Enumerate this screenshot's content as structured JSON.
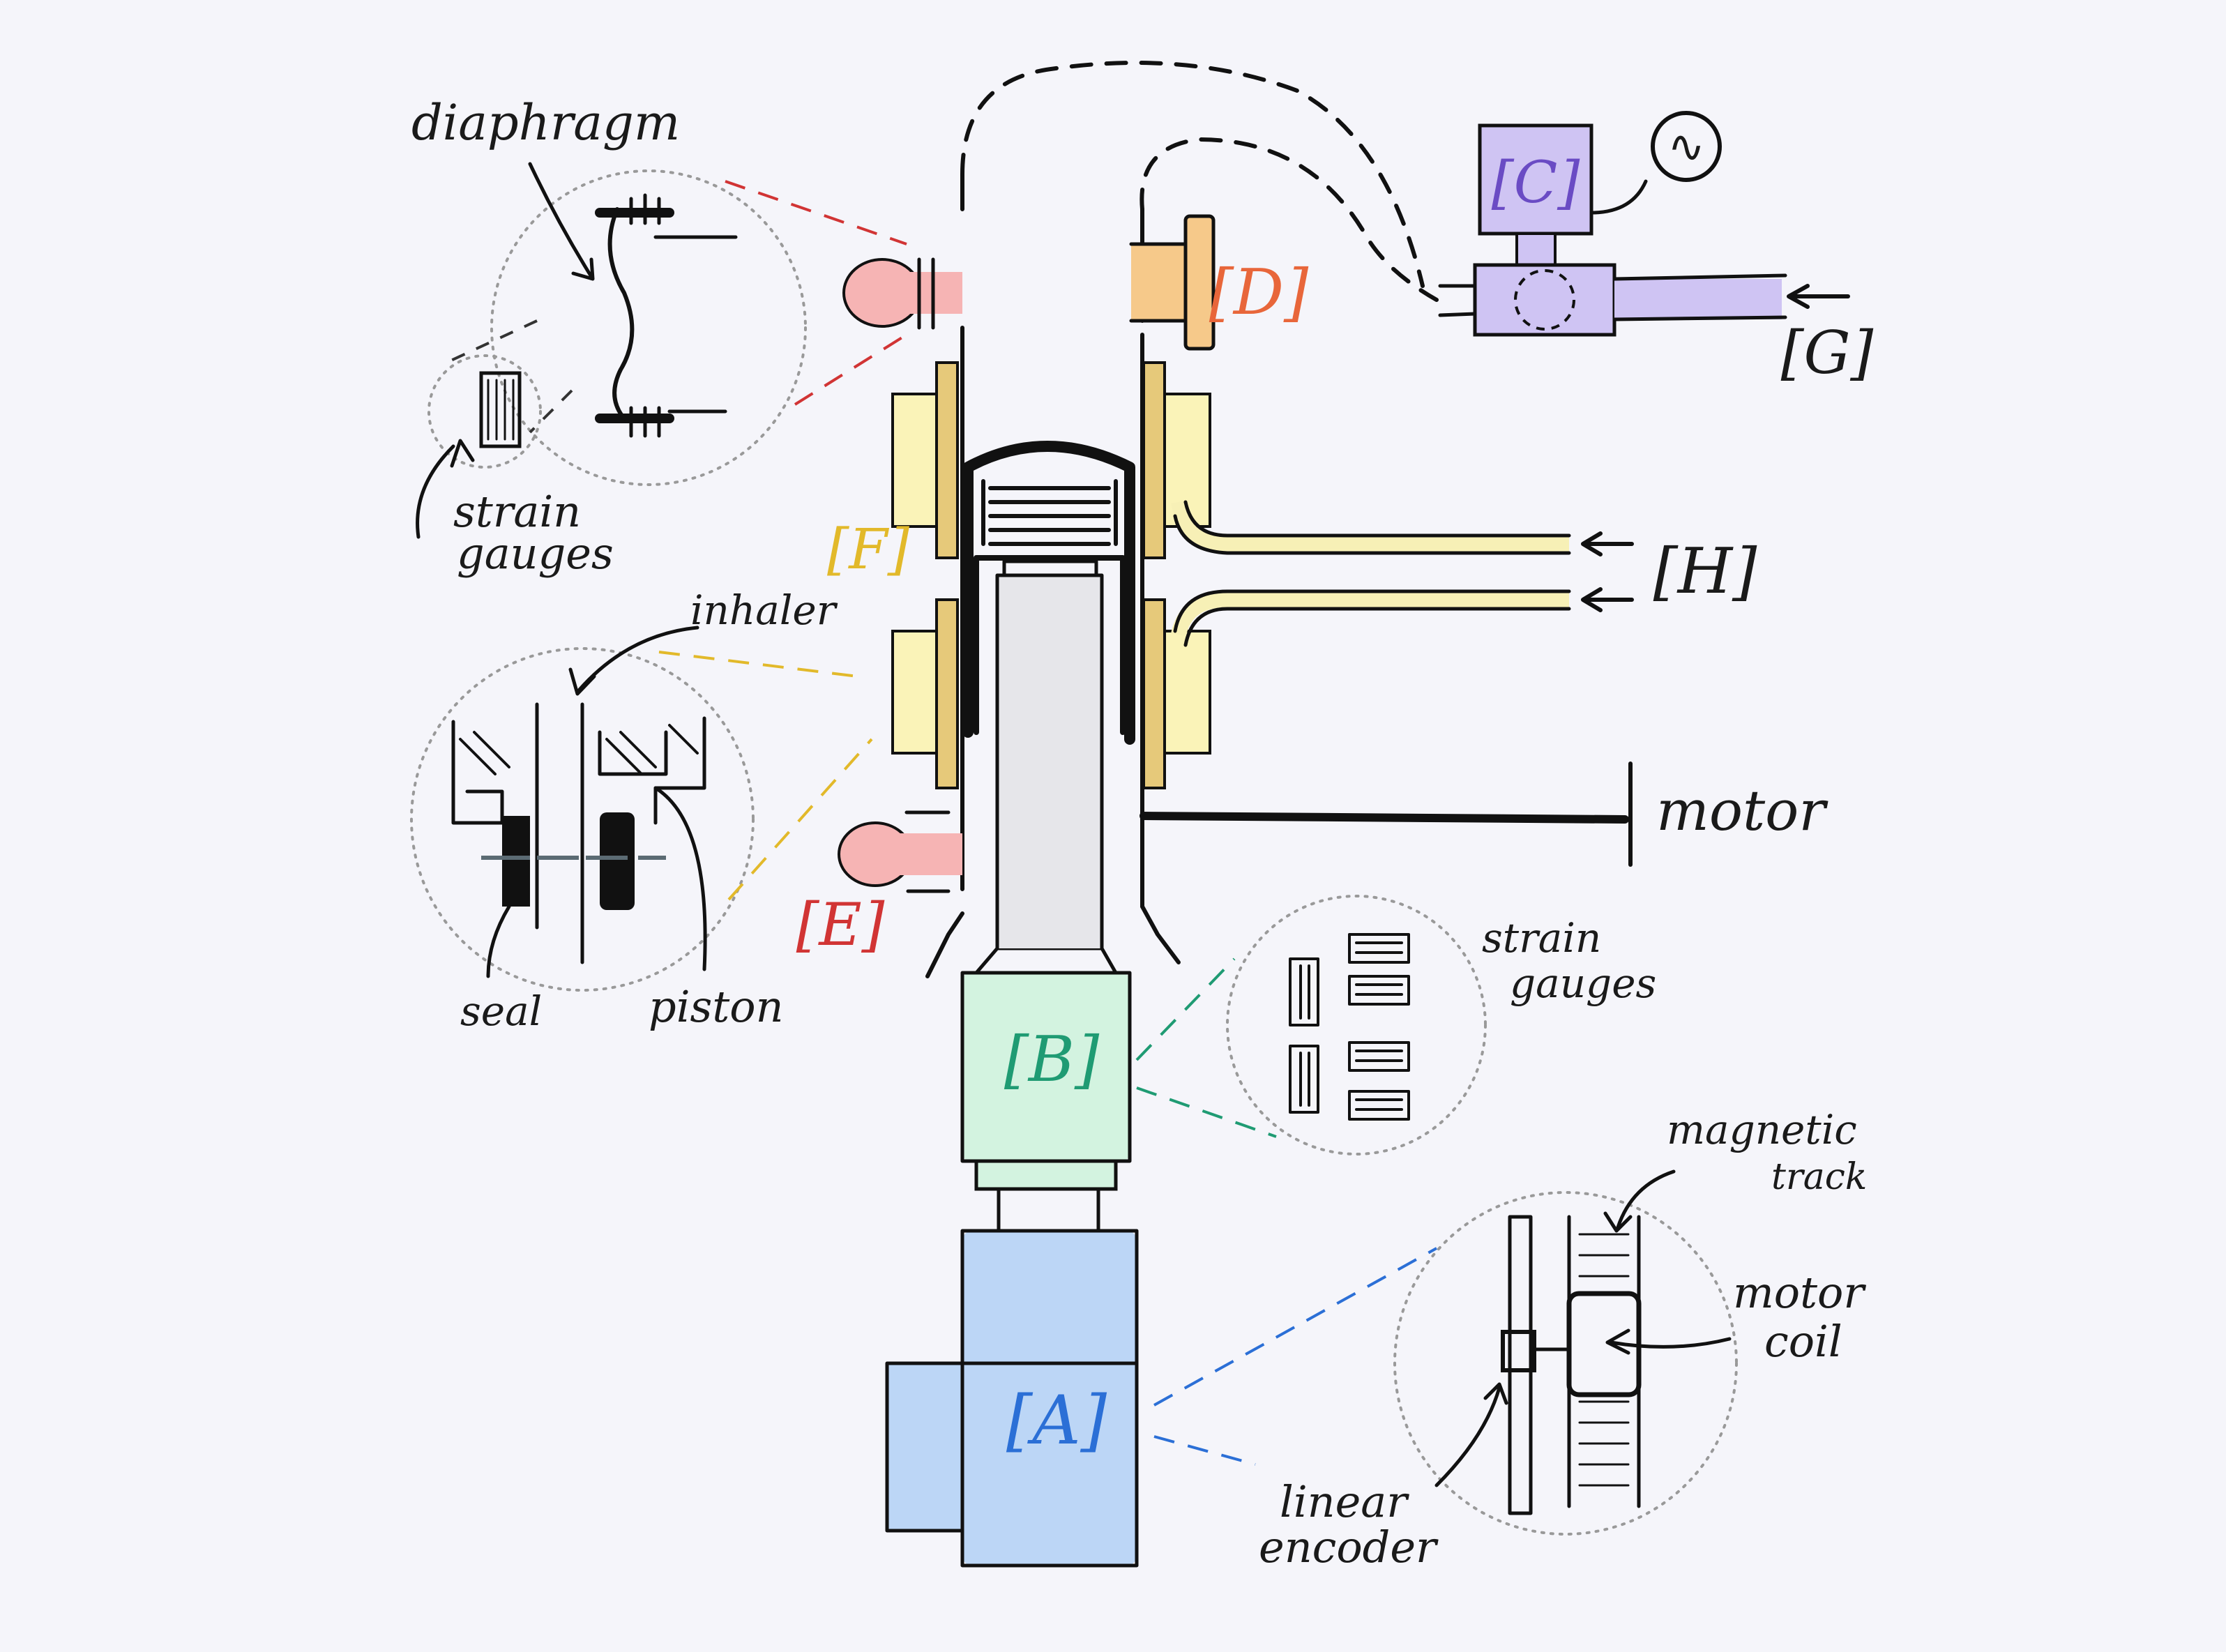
{
  "labels": {
    "A": "[A]",
    "B": "[B]",
    "C": "[C]",
    "D": "[D]",
    "E": "[E]",
    "F": "[F]",
    "G": "[G]",
    "H": "[H]",
    "ac_symbol": "∿"
  },
  "annotations": {
    "diaphragm": "diaphragm",
    "strain_gauges_top": [
      "strain",
      "gauges"
    ],
    "inhaler": "inhaler",
    "seal": "seal",
    "piston": "piston",
    "motor": "motor",
    "strain_gauges_right": [
      "strain",
      "gauges"
    ],
    "magnetic_track": [
      "magnetic",
      "track"
    ],
    "motor_coil": [
      "motor",
      "coil"
    ],
    "linear_encoder": [
      "linear",
      "encoder"
    ]
  },
  "colors": {
    "background": "#f5f5fa",
    "A": "#bcd6f6",
    "A_text": "#2b6fd6",
    "B": "#d3f3e0",
    "B_text": "#1f9b73",
    "C": "#cfc4f3",
    "C_text": "#6a4bc4",
    "D": "#f6c98a",
    "D_text": "#e8663a",
    "E": "#f6b4b4",
    "E_text": "#d13434",
    "F": "#faf3b8",
    "F_text": "#e2b92a",
    "G_valve": "#cfc4f3",
    "H_tube": "#f7f0b6",
    "ink": "#111111"
  }
}
